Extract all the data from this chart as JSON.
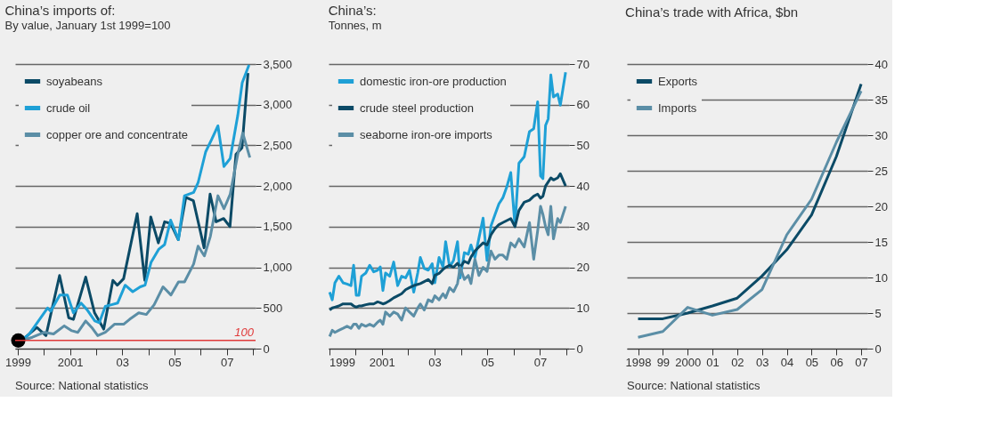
{
  "chart_data": [
    {
      "type": "line",
      "title": "China’s imports of:",
      "subtitle": "By value, January 1st 1999=100",
      "grid": "y",
      "legend": "top left",
      "xlim": [
        1998.9,
        2008.1
      ],
      "ylim": [
        0,
        3500
      ],
      "xticks": [
        1999,
        {
          "value": 2000,
          "label": null
        },
        2001,
        {
          "value": 2002,
          "label": null
        },
        {
          "value": 2003,
          "label": "03"
        },
        {
          "value": 2004,
          "label": null
        },
        {
          "value": 2005,
          "label": "05"
        },
        {
          "value": 2006,
          "label": null
        },
        {
          "value": 2007,
          "label": "07"
        },
        {
          "value": 2008,
          "label": null
        }
      ],
      "yticks": [
        0,
        {
          "value": 500,
          "label": "500"
        },
        {
          "value": 1000,
          "label": "1,000"
        },
        {
          "value": 1500,
          "label": "1,500"
        },
        {
          "value": 2000,
          "label": "2,000"
        },
        {
          "value": 2500,
          "label": "2,500"
        },
        {
          "value": 3000,
          "label": "3,000"
        },
        {
          "value": 3500,
          "label": "3,500"
        }
      ],
      "series": [
        {
          "name": "soyabeans",
          "color": "#0b4a66",
          "x": [
            1999.15,
            1999.73,
            2000.08,
            2000.6,
            2000.95,
            2001.13,
            2001.6,
            2001.94,
            2002.29,
            2002.64,
            2002.81,
            2003.05,
            2003.57,
            2003.86,
            2004.09,
            2004.38,
            2004.62,
            2004.85,
            2005.14,
            2005.43,
            2005.72,
            2006.13,
            2006.36,
            2006.59,
            2006.88,
            2007.12,
            2007.35,
            2007.58,
            2007.81
          ],
          "values": [
            100,
            260,
            160,
            900,
            380,
            360,
            880,
            440,
            240,
            840,
            780,
            860,
            1660,
            840,
            1620,
            1300,
            1560,
            1540,
            1340,
            1860,
            1820,
            1240,
            1900,
            1560,
            1600,
            1500,
            2390,
            2470,
            3390
          ]
        },
        {
          "name": "crude oil",
          "color": "#1ea0d6",
          "x": [
            1999.15,
            1999.44,
            2000.14,
            2000.26,
            2000.61,
            2000.9,
            2001.13,
            2001.42,
            2001.65,
            2001.95,
            2002.12,
            2002.35,
            2002.59,
            2002.82,
            2003.11,
            2003.4,
            2003.69,
            2003.87,
            2004.1,
            2004.39,
            2004.62,
            2004.85,
            2005.15,
            2005.38,
            2005.73,
            2005.9,
            2006.19,
            2006.43,
            2006.66,
            2006.89,
            2007.13,
            2007.42,
            2007.59,
            2007.85
          ],
          "values": [
            100,
            180,
            500,
            460,
            660,
            660,
            440,
            560,
            480,
            340,
            320,
            520,
            540,
            560,
            780,
            700,
            760,
            780,
            1060,
            1220,
            1280,
            1580,
            1340,
            1880,
            1920,
            2040,
            2420,
            2580,
            2740,
            2240,
            2340,
            2870,
            3270,
            3490
          ]
        },
        {
          "name": "copper ore and concentrate",
          "color": "#5b8ea6",
          "x": [
            1999.15,
            1999.56,
            2000.02,
            2000.37,
            2000.78,
            2001.07,
            2001.3,
            2001.6,
            2001.83,
            2002.06,
            2002.35,
            2002.7,
            2003.05,
            2003.28,
            2003.63,
            2003.92,
            2004.22,
            2004.56,
            2004.86,
            2005.15,
            2005.38,
            2005.73,
            2005.9,
            2006.14,
            2006.37,
            2006.66,
            2006.89,
            2007.13,
            2007.42,
            2007.61,
            2007.88
          ],
          "values": [
            100,
            140,
            200,
            180,
            280,
            220,
            200,
            340,
            260,
            160,
            200,
            300,
            300,
            360,
            440,
            420,
            540,
            760,
            660,
            820,
            820,
            1040,
            1260,
            1140,
            1380,
            1880,
            1720,
            1900,
            2390,
            2650,
            2350
          ]
        },
        {
          "type": "scatter",
          "marker": "circle",
          "color": "#000000",
          "x": [
            1999.02
          ],
          "values": [
            100
          ]
        }
      ],
      "ref_lines": [
        {
          "axis": "y",
          "value": 100,
          "label": "100",
          "color": "#e03a3a"
        }
      ],
      "annotations": [
        "Source: National statistics"
      ]
    },
    {
      "type": "line",
      "title": "China’s:",
      "subtitle": "Tonnes, m",
      "grid": "y",
      "legend": "top left",
      "xlim": [
        1998.98,
        2008.1
      ],
      "ylim": [
        0,
        70
      ],
      "xticks": [
        1999,
        {
          "value": 2000,
          "label": null
        },
        2001,
        {
          "value": 2002,
          "label": null
        },
        {
          "value": 2003,
          "label": "03"
        },
        {
          "value": 2004,
          "label": null
        },
        {
          "value": 2005,
          "label": "05"
        },
        {
          "value": 2006,
          "label": null
        },
        {
          "value": 2007,
          "label": "07"
        },
        {
          "value": 2008,
          "label": null
        }
      ],
      "yticks": [
        0,
        10,
        20,
        30,
        40,
        50,
        60,
        70
      ],
      "x": [
        1999.02,
        1999.12,
        1999.22,
        1999.37,
        1999.53,
        1999.68,
        1999.83,
        1999.93,
        2000.03,
        2000.13,
        2000.23,
        2000.39,
        2000.54,
        2000.69,
        2000.84,
        2000.94,
        2001.04,
        2001.14,
        2001.3,
        2001.45,
        2001.6,
        2001.75,
        2001.9,
        2002.05,
        2002.21,
        2002.36,
        2002.46,
        2002.61,
        2002.76,
        2002.91,
        2003.01,
        2003.17,
        2003.32,
        2003.42,
        2003.57,
        2003.72,
        2003.87,
        2003.97,
        2004.13,
        2004.28,
        2004.38,
        2004.53,
        2004.68,
        2004.84,
        2004.99,
        2005.14,
        2005.29,
        2005.44,
        2005.59,
        2005.74,
        2005.89,
        2006.05,
        2006.2,
        2006.4,
        2006.6,
        2006.76,
        2006.91,
        2007.02,
        2007.11,
        2007.21,
        2007.31,
        2007.41,
        2007.51,
        2007.67,
        2007.77,
        2007.97
      ],
      "series": [
        {
          "name": "domestic iron-ore production",
          "color": "#1ea0d6",
          "values": [
            13.9,
            12,
            16.2,
            17.8,
            16.2,
            15.9,
            15.5,
            20.5,
            13.1,
            13.1,
            17.8,
            18.6,
            20.5,
            18.9,
            19.3,
            20.1,
            14.3,
            18.6,
            17.8,
            21.3,
            15.5,
            17.8,
            17.4,
            19.3,
            13.9,
            18.6,
            22.4,
            19.7,
            19.3,
            20.9,
            16.2,
            22.4,
            20.1,
            26.3,
            20.1,
            21.7,
            26.3,
            17.4,
            23.6,
            23.2,
            25.5,
            22.4,
            27.1,
            32.1,
            21.7,
            30.2,
            32.9,
            35.6,
            37.1,
            39.8,
            43.3,
            30.2,
            45.6,
            47.2,
            53.4,
            54.1,
            60.7,
            42.5,
            41.8,
            54.9,
            56.5,
            67.3,
            61.9,
            62.6,
            59.9,
            68
          ]
        },
        {
          "name": "crude steel production",
          "color": "#0b4a66",
          "values": [
            9.5,
            10,
            10.2,
            10.5,
            11,
            11,
            11,
            10.5,
            10.2,
            10.5,
            10.5,
            10.8,
            11,
            11,
            11.5,
            11.3,
            11,
            11.2,
            11.8,
            12.5,
            13,
            13.5,
            14.5,
            15,
            15.5,
            15.8,
            16,
            16.5,
            17,
            16,
            18,
            18.5,
            19.5,
            20,
            20.5,
            20,
            21,
            20,
            21.5,
            21,
            22.5,
            24,
            25,
            26,
            25.5,
            28,
            29.5,
            30.5,
            31,
            31.5,
            32,
            30,
            34,
            36,
            36.5,
            37.5,
            38,
            37,
            37.5,
            40,
            41,
            42,
            41.5,
            42,
            43,
            40
          ]
        },
        {
          "name": "seaborne iron-ore imports",
          "color": "#5b8ea6",
          "values": [
            3,
            4.5,
            4,
            4.5,
            5,
            5.5,
            5,
            6,
            6,
            5,
            6,
            5.5,
            6,
            5.5,
            6.5,
            7,
            6,
            9,
            8,
            9,
            8.5,
            7,
            10,
            9,
            8,
            10,
            11,
            9.5,
            12,
            11.5,
            13,
            12,
            13.5,
            12.5,
            15,
            14,
            16,
            20,
            17,
            18,
            16,
            22,
            18,
            20,
            19,
            24,
            22,
            23,
            23,
            22,
            26,
            25,
            27,
            25,
            31,
            22,
            29,
            35,
            33,
            30,
            28,
            35,
            27,
            32,
            31,
            35
          ]
        }
      ]
    },
    {
      "type": "line",
      "title": "China’s trade with Africa, $bn",
      "grid": "y",
      "legend": "top left",
      "xlim": [
        1997.55,
        2007.25
      ],
      "ylim": [
        0,
        40
      ],
      "xticks": [
        1998,
        {
          "value": 1999,
          "label": "99"
        },
        2000,
        {
          "value": 2001,
          "label": "01"
        },
        {
          "value": 2002,
          "label": "02"
        },
        {
          "value": 2003,
          "label": "03"
        },
        {
          "value": 2004,
          "label": "04"
        },
        {
          "value": 2005,
          "label": "05"
        },
        {
          "value": 2006,
          "label": "06"
        },
        {
          "value": 2007,
          "label": "07"
        }
      ],
      "yticks": [
        0,
        5,
        10,
        15,
        20,
        25,
        30,
        35,
        40
      ],
      "x": [
        1998,
        1999,
        2000,
        2001,
        2002,
        2003,
        2004,
        2005,
        2006,
        2007
      ],
      "series": [
        {
          "name": "Exports",
          "color": "#0b4a66",
          "values": [
            4.2,
            4.2,
            5,
            6,
            7.1,
            10.2,
            13.9,
            18.8,
            27,
            37.2
          ]
        },
        {
          "name": "Imports",
          "color": "#5b8ea6",
          "values": [
            1.6,
            2.4,
            5.8,
            4.7,
            5.5,
            8.3,
            16,
            21,
            29,
            36.2
          ]
        }
      ],
      "annotations": [
        "Source: National statistics"
      ]
    }
  ]
}
